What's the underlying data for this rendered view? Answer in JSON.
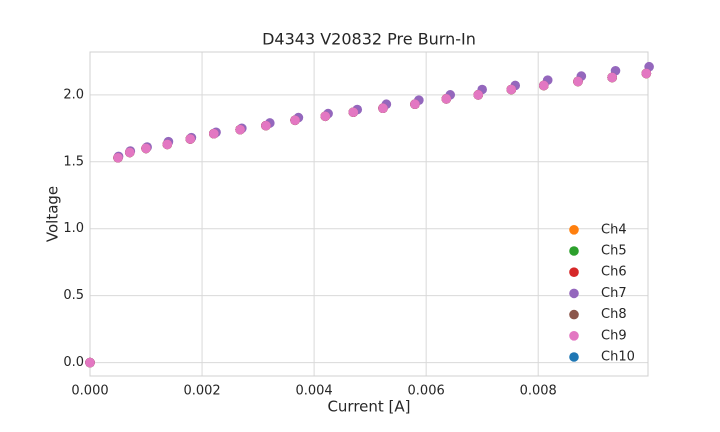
{
  "chart_data": {
    "type": "scatter",
    "title": "D4343 V20832 Pre Burn-In",
    "x_label": "Current [A]",
    "y_label": "Voltage",
    "xlim": [
      0,
      0.00996
    ],
    "ylim": [
      -0.1,
      2.32
    ],
    "xticks": [
      {
        "value": 0,
        "label": "0.000"
      },
      {
        "value": 0.002,
        "label": "0.002"
      },
      {
        "value": 0.004,
        "label": "0.004"
      },
      {
        "value": 0.006,
        "label": "0.006"
      },
      {
        "value": 0.008,
        "label": "0.008"
      }
    ],
    "yticks": [
      {
        "value": 0,
        "label": "0.0"
      },
      0.5,
      {
        "value": 1,
        "label": "1.0"
      },
      1.5,
      {
        "value": 2,
        "label": "2.0"
      }
    ],
    "grid": true,
    "legend": "lower right",
    "series": [
      {
        "name": "Ch4",
        "color": "#ff7f0e",
        "x": [
          0,
          0.0005,
          0.00071,
          0.001,
          0.00138,
          0.00179,
          0.00221,
          0.00268,
          0.00314,
          0.00366,
          0.0042,
          0.0047,
          0.00523,
          0.0058,
          0.00636,
          0.00693,
          0.00752,
          0.0081,
          0.00871,
          0.00932,
          0.00993
        ],
        "values": [
          0,
          1.53,
          1.57,
          1.6,
          1.63,
          1.67,
          1.71,
          1.74,
          1.77,
          1.81,
          1.84,
          1.87,
          1.9,
          1.93,
          1.97,
          2.0,
          2.04,
          2.07,
          2.1,
          2.13,
          2.16
        ]
      },
      {
        "name": "Ch5",
        "color": "#2ca02c",
        "x": [
          0,
          0.0005,
          0.00071,
          0.001,
          0.00138,
          0.00179,
          0.00221,
          0.00268,
          0.00314,
          0.00366,
          0.0042,
          0.0047,
          0.00523,
          0.0058,
          0.00636,
          0.00693,
          0.00752,
          0.0081,
          0.00871,
          0.00932,
          0.00993
        ],
        "values": [
          0,
          1.53,
          1.57,
          1.6,
          1.63,
          1.67,
          1.71,
          1.74,
          1.77,
          1.81,
          1.84,
          1.87,
          1.9,
          1.93,
          1.97,
          2.0,
          2.04,
          2.07,
          2.1,
          2.13,
          2.16
        ]
      },
      {
        "name": "Ch6",
        "color": "#d62728",
        "x": [
          0,
          0.0005,
          0.00071,
          0.001,
          0.00138,
          0.00179,
          0.00221,
          0.00268,
          0.00314,
          0.00366,
          0.0042,
          0.0047,
          0.00523,
          0.0058,
          0.00636,
          0.00693,
          0.00752,
          0.0081,
          0.00871,
          0.00932,
          0.00993
        ],
        "values": [
          0,
          1.53,
          1.57,
          1.6,
          1.63,
          1.67,
          1.71,
          1.74,
          1.77,
          1.81,
          1.84,
          1.87,
          1.9,
          1.93,
          1.97,
          2.0,
          2.04,
          2.07,
          2.1,
          2.13,
          2.16
        ]
      },
      {
        "name": "Ch7",
        "color": "#9467bd",
        "x": [
          0,
          0.00051,
          0.00072,
          0.00102,
          0.0014,
          0.00181,
          0.00225,
          0.00271,
          0.00321,
          0.00372,
          0.00425,
          0.00477,
          0.00529,
          0.00587,
          0.00643,
          0.007,
          0.00759,
          0.00817,
          0.00877,
          0.00938,
          0.00998
        ],
        "values": [
          0,
          1.54,
          1.58,
          1.61,
          1.65,
          1.68,
          1.72,
          1.75,
          1.79,
          1.83,
          1.86,
          1.89,
          1.93,
          1.96,
          2.0,
          2.04,
          2.07,
          2.11,
          2.14,
          2.18,
          2.21
        ]
      },
      {
        "name": "Ch8",
        "color": "#8c564b",
        "x": [
          0,
          0.0005,
          0.00071,
          0.001,
          0.00138,
          0.00179,
          0.00221,
          0.00268,
          0.00314,
          0.00366,
          0.0042,
          0.0047,
          0.00523,
          0.0058,
          0.00636,
          0.00693,
          0.00752,
          0.0081,
          0.00871,
          0.00932,
          0.00993
        ],
        "values": [
          0,
          1.53,
          1.57,
          1.6,
          1.63,
          1.67,
          1.71,
          1.74,
          1.77,
          1.81,
          1.84,
          1.87,
          1.9,
          1.93,
          1.97,
          2.0,
          2.04,
          2.07,
          2.1,
          2.13,
          2.16
        ]
      },
      {
        "name": "Ch9",
        "color": "#e377c2",
        "x": [
          0,
          0.0005,
          0.00071,
          0.001,
          0.00138,
          0.00179,
          0.00221,
          0.00268,
          0.00314,
          0.00366,
          0.0042,
          0.0047,
          0.00523,
          0.0058,
          0.00636,
          0.00693,
          0.00752,
          0.0081,
          0.00871,
          0.00932,
          0.00993
        ],
        "values": [
          0,
          1.53,
          1.57,
          1.6,
          1.63,
          1.67,
          1.71,
          1.74,
          1.77,
          1.81,
          1.84,
          1.87,
          1.9,
          1.93,
          1.97,
          2.0,
          2.04,
          2.07,
          2.1,
          2.13,
          2.16
        ]
      },
      {
        "name": "Ch10",
        "color": "#1f77b4",
        "x": [
          0,
          0.0005,
          0.00071,
          0.001,
          0.00138,
          0.00179,
          0.00221,
          0.00268,
          0.00314,
          0.00366,
          0.0042,
          0.0047,
          0.00523,
          0.0058,
          0.00636,
          0.00693,
          0.00752,
          0.0081,
          0.00871,
          0.00932,
          0.00993
        ],
        "values": [
          0,
          1.53,
          1.57,
          1.6,
          1.63,
          1.67,
          1.71,
          1.74,
          1.77,
          1.81,
          1.84,
          1.87,
          1.9,
          1.93,
          1.97,
          2.0,
          2.04,
          2.07,
          2.1,
          2.13,
          2.16
        ]
      }
    ]
  }
}
